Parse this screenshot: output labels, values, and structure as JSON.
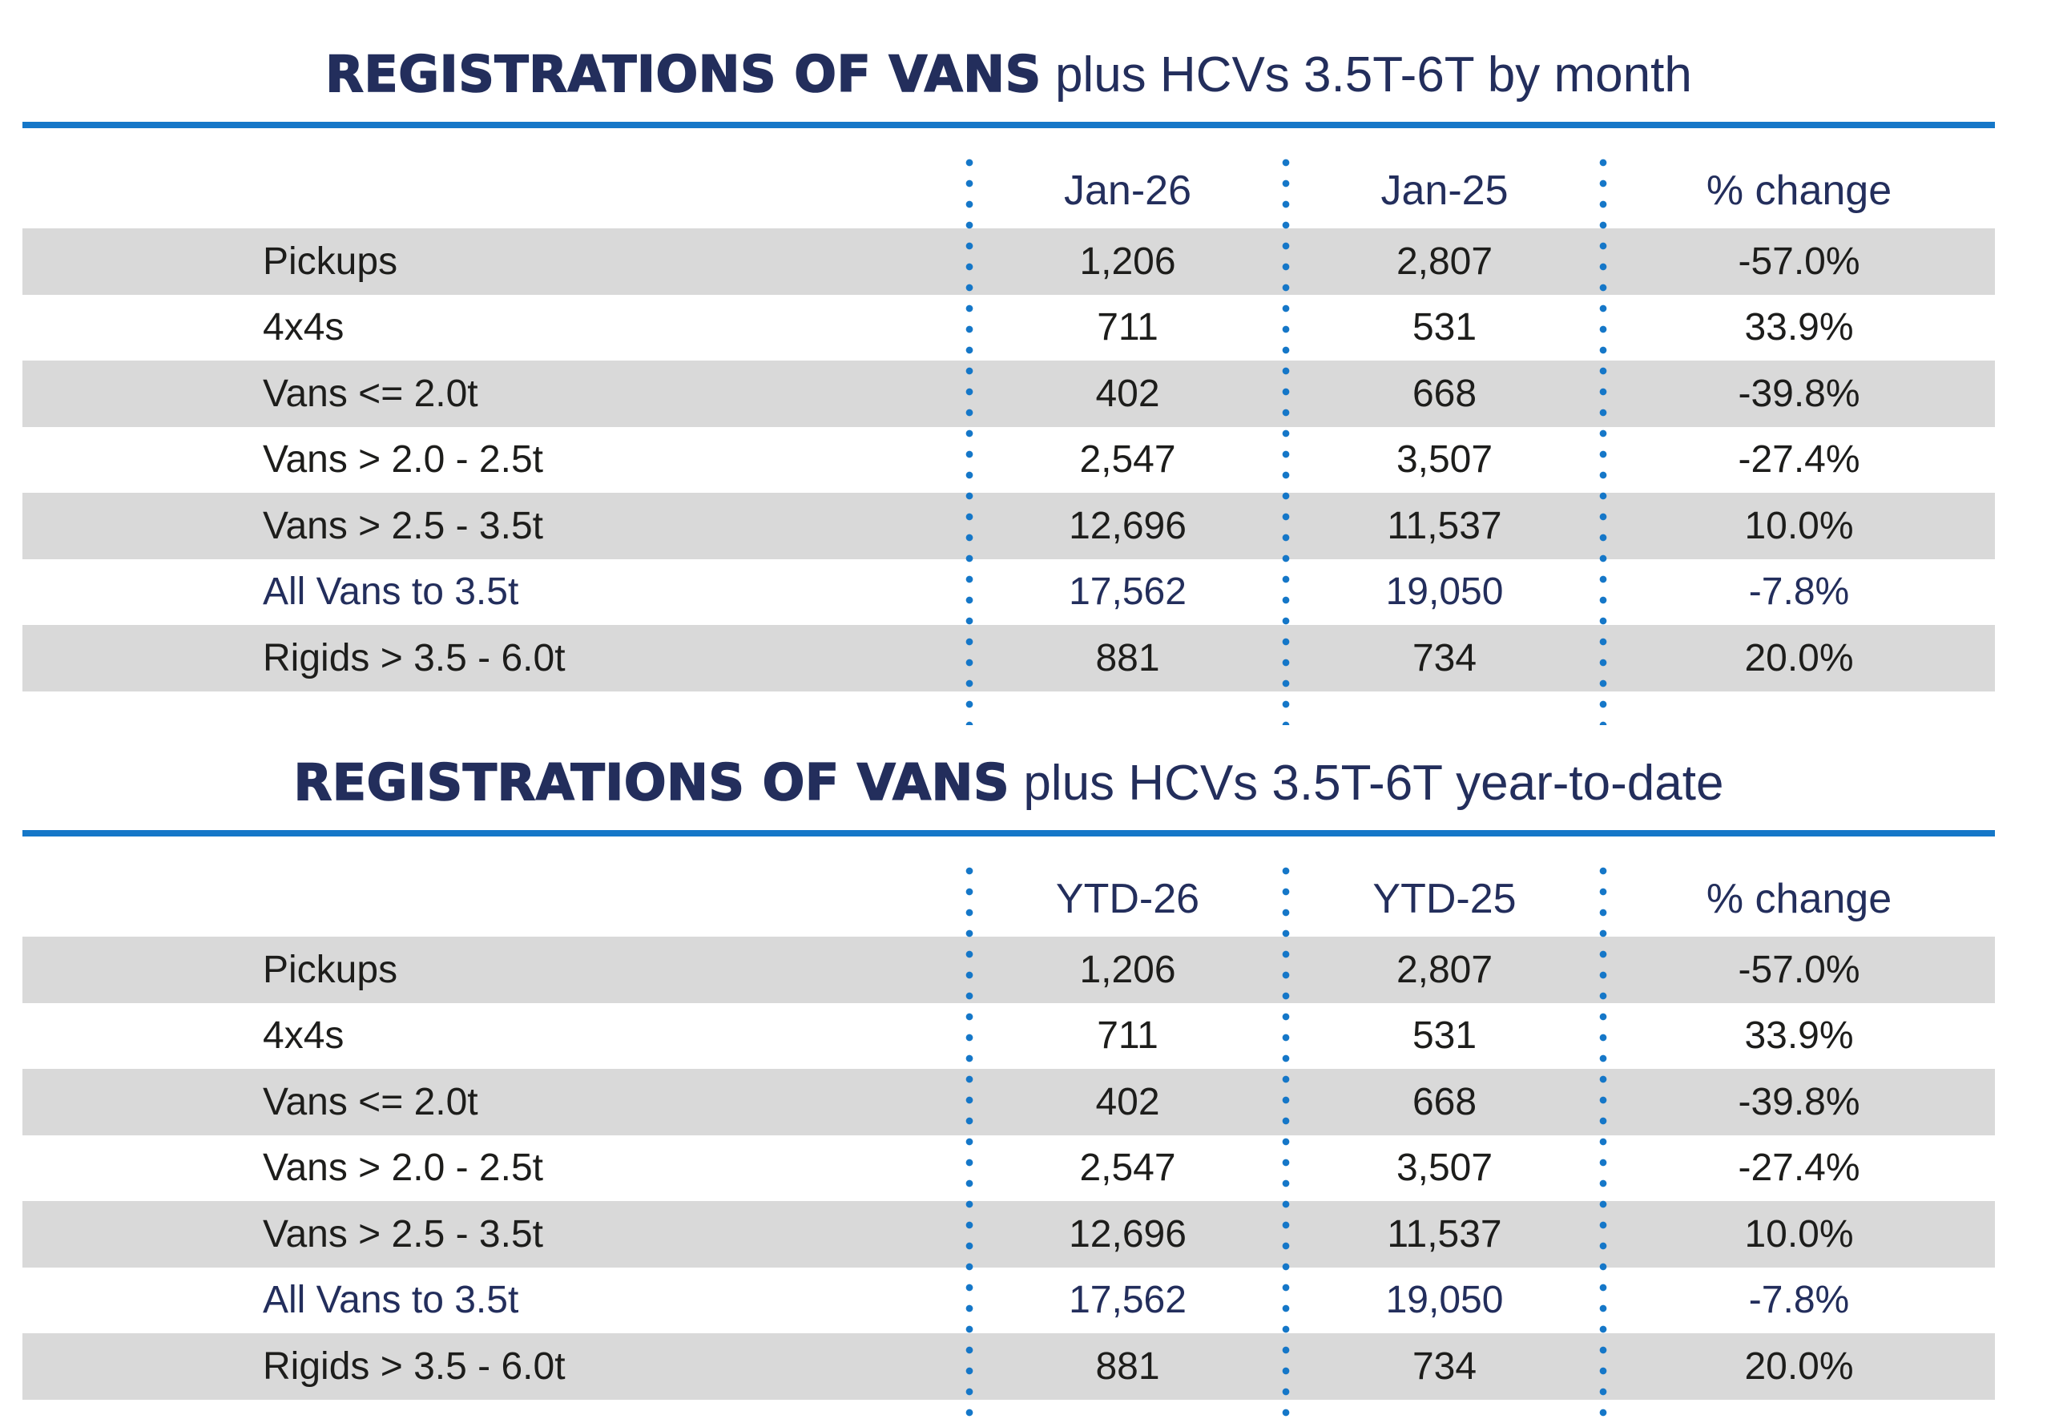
{
  "colors": {
    "navy_text": "#232e5c",
    "azure_rule_and_dots": "#1577c8",
    "row_shade_gray": "#d9d9d9",
    "body_text": "#1d1d1b",
    "background": "#ffffff"
  },
  "tables": [
    {
      "title_bold": "REGISTRATIONS OF VANS",
      "title_rest": " plus HCVs 3.5T-6T by month",
      "headers": [
        "Jan-26",
        "Jan-25",
        "% change"
      ],
      "rows": [
        {
          "label": "Pickups",
          "v1": "1,206",
          "v2": "2,807",
          "change": "-57.0%",
          "emphasis": false
        },
        {
          "label": "4x4s",
          "v1": "711",
          "v2": "531",
          "change": "33.9%",
          "emphasis": false
        },
        {
          "label": "Vans <= 2.0t",
          "v1": "402",
          "v2": "668",
          "change": "-39.8%",
          "emphasis": false
        },
        {
          "label": "Vans > 2.0 - 2.5t",
          "v1": "2,547",
          "v2": "3,507",
          "change": "-27.4%",
          "emphasis": false
        },
        {
          "label": "Vans > 2.5 - 3.5t",
          "v1": "12,696",
          "v2": "11,537",
          "change": "10.0%",
          "emphasis": false
        },
        {
          "label": "All Vans to 3.5t",
          "v1": "17,562",
          "v2": "19,050",
          "change": "-7.8%",
          "emphasis": true
        },
        {
          "label": "Rigids > 3.5 - 6.0t",
          "v1": "881",
          "v2": "734",
          "change": "20.0%",
          "emphasis": false
        }
      ]
    },
    {
      "title_bold": "REGISTRATIONS OF VANS",
      "title_rest": " plus HCVs 3.5T-6T year-to-date",
      "headers": [
        "YTD-26",
        "YTD-25",
        "% change"
      ],
      "rows": [
        {
          "label": "Pickups",
          "v1": "1,206",
          "v2": "2,807",
          "change": "-57.0%",
          "emphasis": false
        },
        {
          "label": "4x4s",
          "v1": "711",
          "v2": "531",
          "change": "33.9%",
          "emphasis": false
        },
        {
          "label": "Vans <= 2.0t",
          "v1": "402",
          "v2": "668",
          "change": "-39.8%",
          "emphasis": false
        },
        {
          "label": "Vans > 2.0 - 2.5t",
          "v1": "2,547",
          "v2": "3,507",
          "change": "-27.4%",
          "emphasis": false
        },
        {
          "label": "Vans > 2.5 - 3.5t",
          "v1": "12,696",
          "v2": "11,537",
          "change": "10.0%",
          "emphasis": false
        },
        {
          "label": "All Vans to 3.5t",
          "v1": "17,562",
          "v2": "19,050",
          "change": "-7.8%",
          "emphasis": true
        },
        {
          "label": "Rigids > 3.5 - 6.0t",
          "v1": "881",
          "v2": "734",
          "change": "20.0%",
          "emphasis": false
        }
      ]
    }
  ],
  "chart_data": [
    {
      "type": "table",
      "title": "REGISTRATIONS OF VANS plus HCVs 3.5T-6T by month",
      "columns": [
        "",
        "Jan-26",
        "Jan-25",
        "% change"
      ],
      "rows": [
        [
          "Pickups",
          1206,
          2807,
          "-57.0%"
        ],
        [
          "4x4s",
          711,
          531,
          "33.9%"
        ],
        [
          "Vans <= 2.0t",
          402,
          668,
          "-39.8%"
        ],
        [
          "Vans > 2.0 - 2.5t",
          2547,
          3507,
          "-27.4%"
        ],
        [
          "Vans > 2.5 - 3.5t",
          12696,
          11537,
          "10.0%"
        ],
        [
          "All Vans to 3.5t",
          17562,
          19050,
          "-7.8%"
        ],
        [
          "Rigids > 3.5 - 6.0t",
          881,
          734,
          "20.0%"
        ]
      ],
      "notes": "Row 'All Vans to 3.5t' is a totals row emphasized in navy; alternating rows shaded gray"
    },
    {
      "type": "table",
      "title": "REGISTRATIONS OF VANS plus HCVs 3.5T-6T year-to-date",
      "columns": [
        "",
        "YTD-26",
        "YTD-25",
        "% change"
      ],
      "rows": [
        [
          "Pickups",
          1206,
          2807,
          "-57.0%"
        ],
        [
          "4x4s",
          711,
          531,
          "33.9%"
        ],
        [
          "Vans <= 2.0t",
          402,
          668,
          "-39.8%"
        ],
        [
          "Vans > 2.0 - 2.5t",
          2547,
          3507,
          "-27.4%"
        ],
        [
          "Vans > 2.5 - 3.5t",
          12696,
          11537,
          "10.0%"
        ],
        [
          "All Vans to 3.5t",
          17562,
          19050,
          "-7.8%"
        ],
        [
          "Rigids > 3.5 - 6.0t",
          881,
          734,
          "20.0%"
        ]
      ],
      "notes": "Row 'All Vans to 3.5t' is a totals row emphasized in navy; alternating rows shaded gray"
    }
  ]
}
